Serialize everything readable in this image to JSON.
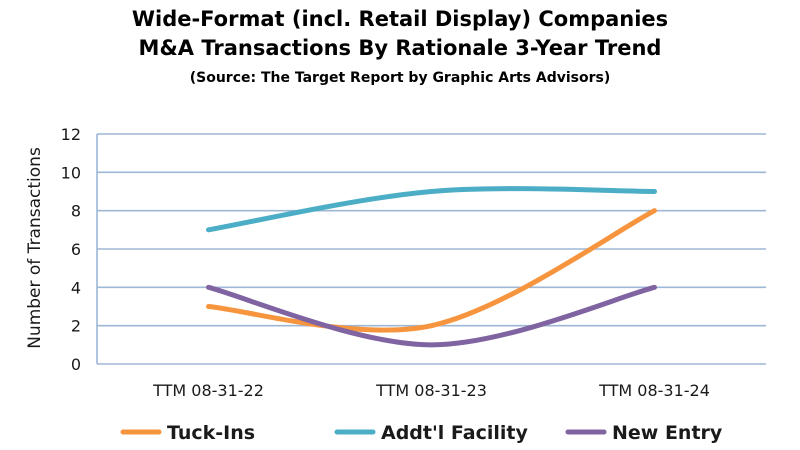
{
  "chart_data": {
    "type": "line",
    "title_lines": [
      "Wide-Format (incl. Retail Display) Companies",
      "M&A Transactions By Rationale 3-Year Trend"
    ],
    "subtitle": "(Source: The Target Report by Graphic Arts Advisors)",
    "xlabel": "",
    "ylabel": "Number of Transactions",
    "categories": [
      "TTM 08-31-22",
      "TTM 08-31-23",
      "TTM 08-31-24"
    ],
    "ylim": [
      0,
      12
    ],
    "yticks": [
      0,
      2,
      4,
      6,
      8,
      10,
      12
    ],
    "grid": true,
    "smooth": true,
    "legend_position": "bottom",
    "series": [
      {
        "name": "Tuck-Ins",
        "color": "#F7953F",
        "values": [
          3,
          2,
          8
        ]
      },
      {
        "name": "Addt'l Facility",
        "color": "#4BADC6",
        "values": [
          7,
          9,
          9
        ]
      },
      {
        "name": "New Entry",
        "color": "#8064A2",
        "values": [
          4,
          1,
          4
        ]
      }
    ]
  }
}
